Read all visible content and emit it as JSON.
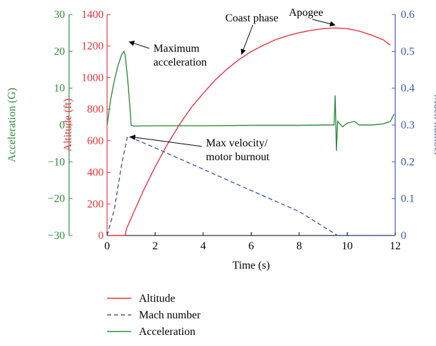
{
  "chart_data": {
    "type": "line",
    "title": "",
    "xlabel": "Time (s)",
    "xlim": [
      0,
      12
    ],
    "x_ticks": [
      0,
      2,
      4,
      6,
      8,
      10,
      12
    ],
    "axes": {
      "acceleration": {
        "label": "Acceleration (G)",
        "ylim": [
          -30,
          30
        ],
        "ticks": [
          "−30",
          "−20",
          "−10",
          "0",
          "10",
          "20",
          "30"
        ],
        "color": "#2e8b3e"
      },
      "altitude": {
        "label": "Altitude (ft)",
        "ylim": [
          0,
          1400
        ],
        "ticks": [
          "0",
          "200",
          "400",
          "600",
          "800",
          "1000",
          "1200",
          "1400"
        ],
        "color": "#e8323c"
      },
      "mach": {
        "label": "Mach number",
        "ylim": [
          0,
          0.6
        ],
        "ticks": [
          "0",
          "0.1",
          "0.2",
          "0.3",
          "0.4",
          "0.5",
          "0.6"
        ],
        "color": "#3a5aa8"
      }
    },
    "series": [
      {
        "name": "Altitude",
        "axis": "altitude",
        "color": "#e8323c",
        "style": "solid",
        "x": [
          0,
          0.75,
          0.8,
          1.0,
          1.5,
          2.0,
          2.5,
          3.0,
          3.5,
          4.0,
          4.5,
          5.0,
          5.5,
          6.0,
          6.5,
          7.0,
          7.5,
          8.0,
          8.5,
          9.0,
          9.5,
          10.0,
          10.5,
          11.0,
          11.5,
          11.8
        ],
        "values": [
          0,
          0,
          40,
          110,
          280,
          435,
          575,
          700,
          810,
          900,
          985,
          1055,
          1115,
          1165,
          1205,
          1240,
          1265,
          1285,
          1300,
          1310,
          1315,
          1310,
          1295,
          1270,
          1240,
          1205
        ]
      },
      {
        "name": "Mach number",
        "axis": "mach",
        "color": "#3a5aa8",
        "style": "dashed",
        "x": [
          0,
          0.3,
          0.6,
          0.85,
          2,
          4,
          6,
          8,
          9.6,
          12
        ],
        "values": [
          0,
          0.07,
          0.19,
          0.27,
          0.238,
          0.18,
          0.122,
          0.065,
          0.0,
          0.0
        ]
      },
      {
        "name": "Acceleration",
        "axis": "acceleration",
        "color": "#2e8b3e",
        "style": "solid",
        "x": [
          0,
          0.15,
          0.3,
          0.45,
          0.6,
          0.7,
          0.75,
          0.85,
          0.95,
          1.0,
          1.1,
          2,
          4,
          6,
          8,
          9,
          9.45,
          9.5,
          9.55,
          9.6,
          9.8,
          10.0,
          10.3,
          10.5,
          11,
          11.5,
          11.8,
          11.95
        ],
        "values": [
          0,
          7,
          12,
          16,
          19,
          20,
          19,
          13,
          5,
          0,
          -0.3,
          -0.2,
          -0.2,
          -0.1,
          -0.1,
          0,
          0,
          8,
          -7,
          1,
          -0.5,
          0.5,
          1,
          0,
          0,
          0.3,
          1,
          3
        ]
      }
    ],
    "annotations": [
      {
        "text": "Maximum\nacceleration",
        "x": 0.75,
        "y": 1240,
        "axis": "altitude"
      },
      {
        "text": "Coast phase",
        "x": 5.6,
        "y": 1140,
        "axis": "altitude"
      },
      {
        "text": "Apogee",
        "x": 9.55,
        "y": 1320,
        "axis": "altitude"
      },
      {
        "text": "Max velocity/\nmotor burnout",
        "x": 0.85,
        "y": 0.27,
        "axis": "mach"
      }
    ],
    "legend": {
      "position": "bottom",
      "entries": [
        "Altitude",
        "Mach number",
        "Acceleration"
      ]
    },
    "grid": false
  }
}
